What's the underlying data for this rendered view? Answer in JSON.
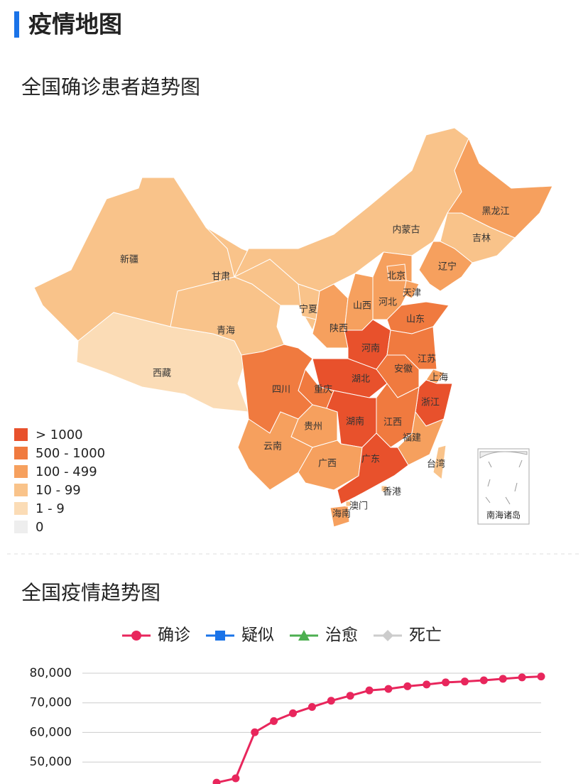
{
  "header": {
    "title": "疫情地图"
  },
  "map": {
    "title": "全国确诊患者趋势图",
    "legend": [
      {
        "label": "> 1000",
        "color": "#e8512c"
      },
      {
        "label": "500 - 1000",
        "color": "#f07a3f"
      },
      {
        "label": "100 - 499",
        "color": "#f6a05e"
      },
      {
        "label": "10 - 99",
        "color": "#f9c38a"
      },
      {
        "label": "1 - 9",
        "color": "#fbdcb6"
      },
      {
        "label": "0",
        "color": "#eeeeee"
      }
    ],
    "provinces": [
      {
        "name": "新疆",
        "color": "#f9c38a"
      },
      {
        "name": "西藏",
        "color": "#fbdcb6"
      },
      {
        "name": "青海",
        "color": "#f9c38a"
      },
      {
        "name": "甘肃",
        "color": "#f9c38a"
      },
      {
        "name": "内蒙古",
        "color": "#f9c38a"
      },
      {
        "name": "黑龙江",
        "color": "#f6a05e"
      },
      {
        "name": "吉林",
        "color": "#f9c38a"
      },
      {
        "name": "辽宁",
        "color": "#f6a05e"
      },
      {
        "name": "宁夏",
        "color": "#f9c38a"
      },
      {
        "name": "陕西",
        "color": "#f6a05e"
      },
      {
        "name": "山西",
        "color": "#f6a05e"
      },
      {
        "name": "河北",
        "color": "#f6a05e"
      },
      {
        "name": "北京",
        "color": "#f6a05e"
      },
      {
        "name": "天津",
        "color": "#f6a05e"
      },
      {
        "name": "山东",
        "color": "#f07a3f"
      },
      {
        "name": "河南",
        "color": "#e8512c"
      },
      {
        "name": "江苏",
        "color": "#f07a3f"
      },
      {
        "name": "安徽",
        "color": "#f07a3f"
      },
      {
        "name": "上海",
        "color": "#f6a05e"
      },
      {
        "name": "浙江",
        "color": "#e8512c"
      },
      {
        "name": "湖北",
        "color": "#e8512c"
      },
      {
        "name": "重庆",
        "color": "#f07a3f"
      },
      {
        "name": "四川",
        "color": "#f07a3f"
      },
      {
        "name": "贵州",
        "color": "#f6a05e"
      },
      {
        "name": "云南",
        "color": "#f6a05e"
      },
      {
        "name": "湖南",
        "color": "#e8512c"
      },
      {
        "name": "江西",
        "color": "#f07a3f"
      },
      {
        "name": "福建",
        "color": "#f6a05e"
      },
      {
        "name": "广西",
        "color": "#f6a05e"
      },
      {
        "name": "广东",
        "color": "#e8512c"
      },
      {
        "name": "海南",
        "color": "#f6a05e"
      },
      {
        "name": "台湾",
        "color": "#f9c38a"
      },
      {
        "name": "香港",
        "color": "#f9c38a"
      },
      {
        "name": "澳门",
        "color": "#f9c38a"
      }
    ],
    "inset_label": "南海诸岛"
  },
  "chart_data": {
    "type": "line",
    "title": "全国疫情趋势图",
    "categories": [
      null,
      null,
      null,
      null,
      null,
      null,
      null,
      null,
      null,
      null,
      null,
      null,
      null,
      null,
      null,
      null,
      null,
      null
    ],
    "series": [
      {
        "name": "确诊",
        "color": "#e8265c",
        "values": [
          43050,
          44500,
          60070,
          63850,
          66470,
          68600,
          70700,
          72400,
          74200,
          74700,
          75600,
          76200,
          76900,
          77200,
          77600,
          78100,
          78600,
          78900
        ]
      },
      {
        "name": "疑似",
        "color": "#1a73e8",
        "values": [
          null,
          null,
          null,
          null,
          null,
          null,
          null,
          null,
          null,
          null,
          null,
          null,
          null,
          null,
          null,
          null,
          null,
          null
        ]
      },
      {
        "name": "治愈",
        "color": "#4caf50",
        "values": [
          null,
          null,
          null,
          null,
          null,
          null,
          null,
          null,
          null,
          null,
          null,
          null,
          null,
          null,
          null,
          null,
          null,
          null
        ]
      },
      {
        "name": "死亡",
        "color": "#cccccc",
        "values": [
          null,
          null,
          null,
          null,
          null,
          null,
          null,
          null,
          null,
          null,
          null,
          null,
          null,
          null,
          null,
          null,
          null,
          null
        ]
      }
    ],
    "ylim": [
      40000,
      80000
    ],
    "yticks": [
      {
        "value": 50000,
        "label": "50,000"
      },
      {
        "value": 60000,
        "label": "60,000"
      },
      {
        "value": 70000,
        "label": "70,000"
      },
      {
        "value": 80000,
        "label": "80,000"
      }
    ],
    "grid": true
  }
}
